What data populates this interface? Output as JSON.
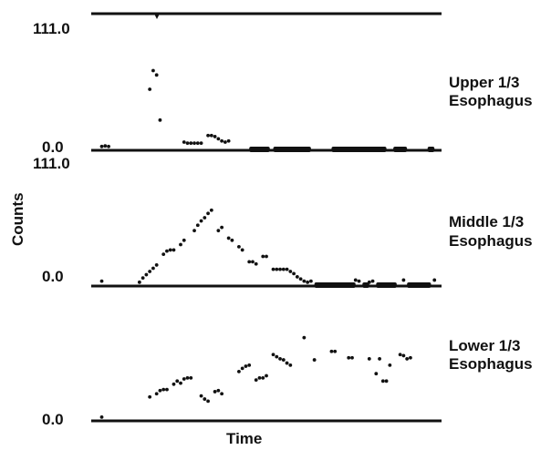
{
  "chart_data": [
    {
      "type": "scatter",
      "title": "Upper 1/3 Esophagus",
      "title_lines": [
        "Upper 1/3",
        "Esophagus"
      ],
      "ylabel": "Counts",
      "xlabel": "Time",
      "ylim": [
        0,
        111.0
      ],
      "yticks": [
        "0.0",
        "111.0"
      ],
      "x_range": [
        0,
        100
      ],
      "series": [
        {
          "points": [
            {
              "x": 2,
              "y": 1
            },
            {
              "x": 3,
              "y": 1.5
            },
            {
              "x": 4,
              "y": 1
            },
            {
              "x": 16,
              "y": 53
            },
            {
              "x": 17,
              "y": 70
            },
            {
              "x": 18,
              "y": 66
            },
            {
              "x": 19,
              "y": 25
            },
            {
              "x": 26,
              "y": 5
            },
            {
              "x": 27,
              "y": 4
            },
            {
              "x": 28,
              "y": 4
            },
            {
              "x": 29,
              "y": 4
            },
            {
              "x": 30,
              "y": 4
            },
            {
              "x": 31,
              "y": 4
            },
            {
              "x": 33,
              "y": 11
            },
            {
              "x": 34,
              "y": 11
            },
            {
              "x": 35,
              "y": 10
            },
            {
              "x": 36,
              "y": 8
            },
            {
              "x": 37,
              "y": 6
            },
            {
              "x": 38,
              "y": 5
            },
            {
              "x": 39,
              "y": 6
            }
          ]
        }
      ],
      "baseline_segments": [
        [
          45,
          51
        ],
        [
          52,
          63
        ],
        [
          69,
          85
        ],
        [
          87,
          91
        ],
        [
          97,
          99
        ]
      ]
    },
    {
      "type": "scatter",
      "title": "Middle 1/3 Esophagus",
      "title_lines": [
        "Middle 1/3",
        "Esophagus"
      ],
      "ylabel": "Counts",
      "xlabel": "Time",
      "ylim": [
        0,
        111.0
      ],
      "yticks": [
        "0.0",
        "111.0"
      ],
      "x_range": [
        0,
        100
      ],
      "series": [
        {
          "points": [
            {
              "x": 2,
              "y": 2
            },
            {
              "x": 13,
              "y": 1
            },
            {
              "x": 14,
              "y": 5
            },
            {
              "x": 15,
              "y": 8
            },
            {
              "x": 16,
              "y": 11
            },
            {
              "x": 17,
              "y": 14
            },
            {
              "x": 18,
              "y": 17
            },
            {
              "x": 20,
              "y": 27
            },
            {
              "x": 21,
              "y": 30
            },
            {
              "x": 22,
              "y": 31
            },
            {
              "x": 23,
              "y": 31
            },
            {
              "x": 25,
              "y": 36
            },
            {
              "x": 26,
              "y": 40
            },
            {
              "x": 29,
              "y": 49
            },
            {
              "x": 30,
              "y": 54
            },
            {
              "x": 31,
              "y": 58
            },
            {
              "x": 32,
              "y": 61
            },
            {
              "x": 33,
              "y": 65
            },
            {
              "x": 34,
              "y": 68
            },
            {
              "x": 36,
              "y": 49
            },
            {
              "x": 37,
              "y": 52
            },
            {
              "x": 39,
              "y": 42
            },
            {
              "x": 40,
              "y": 40
            },
            {
              "x": 42,
              "y": 34
            },
            {
              "x": 43,
              "y": 31
            },
            {
              "x": 45,
              "y": 20
            },
            {
              "x": 46,
              "y": 20
            },
            {
              "x": 47,
              "y": 18
            },
            {
              "x": 49,
              "y": 25
            },
            {
              "x": 50,
              "y": 25
            },
            {
              "x": 52,
              "y": 13
            },
            {
              "x": 53,
              "y": 13
            },
            {
              "x": 54,
              "y": 13
            },
            {
              "x": 55,
              "y": 13
            },
            {
              "x": 56,
              "y": 13
            },
            {
              "x": 57,
              "y": 11
            },
            {
              "x": 58,
              "y": 9
            },
            {
              "x": 59,
              "y": 6
            },
            {
              "x": 60,
              "y": 4
            },
            {
              "x": 61,
              "y": 2
            },
            {
              "x": 62,
              "y": 1
            },
            {
              "x": 63,
              "y": 2
            },
            {
              "x": 76,
              "y": 3
            },
            {
              "x": 77,
              "y": 2
            },
            {
              "x": 80,
              "y": 1
            },
            {
              "x": 81,
              "y": 2
            },
            {
              "x": 90,
              "y": 3
            },
            {
              "x": 99,
              "y": 3
            }
          ]
        }
      ],
      "baseline_segments": [
        [
          64,
          76
        ],
        [
          78,
          80
        ],
        [
          82,
          88
        ],
        [
          91,
          98
        ]
      ]
    },
    {
      "type": "scatter",
      "title": "Lower 1/3 Esophagus",
      "title_lines": [
        "Lower 1/3",
        "Esophagus"
      ],
      "ylabel": "Counts",
      "xlabel": "Time",
      "ylim": [
        0,
        111.0
      ],
      "yticks": [
        "0.0",
        "111.0"
      ],
      "x_range": [
        0,
        100
      ],
      "series": [
        {
          "points": [
            {
              "x": 2,
              "y": 1
            },
            {
              "x": 16,
              "y": 20
            },
            {
              "x": 18,
              "y": 23
            },
            {
              "x": 19,
              "y": 26
            },
            {
              "x": 20,
              "y": 27
            },
            {
              "x": 21,
              "y": 27
            },
            {
              "x": 23,
              "y": 32
            },
            {
              "x": 24,
              "y": 35
            },
            {
              "x": 25,
              "y": 33
            },
            {
              "x": 26,
              "y": 37
            },
            {
              "x": 27,
              "y": 38
            },
            {
              "x": 28,
              "y": 38
            },
            {
              "x": 31,
              "y": 21
            },
            {
              "x": 32,
              "y": 18
            },
            {
              "x": 33,
              "y": 16
            },
            {
              "x": 35,
              "y": 25
            },
            {
              "x": 36,
              "y": 26
            },
            {
              "x": 37,
              "y": 23
            },
            {
              "x": 42,
              "y": 44
            },
            {
              "x": 43,
              "y": 47
            },
            {
              "x": 44,
              "y": 49
            },
            {
              "x": 45,
              "y": 50
            },
            {
              "x": 47,
              "y": 36
            },
            {
              "x": 48,
              "y": 38
            },
            {
              "x": 49,
              "y": 38
            },
            {
              "x": 50,
              "y": 40
            },
            {
              "x": 52,
              "y": 60
            },
            {
              "x": 53,
              "y": 58
            },
            {
              "x": 54,
              "y": 56
            },
            {
              "x": 55,
              "y": 55
            },
            {
              "x": 56,
              "y": 52
            },
            {
              "x": 57,
              "y": 50
            },
            {
              "x": 61,
              "y": 76
            },
            {
              "x": 64,
              "y": 55
            },
            {
              "x": 69,
              "y": 63
            },
            {
              "x": 70,
              "y": 63
            },
            {
              "x": 74,
              "y": 57
            },
            {
              "x": 75,
              "y": 57
            },
            {
              "x": 80,
              "y": 56
            },
            {
              "x": 82,
              "y": 42
            },
            {
              "x": 83,
              "y": 56
            },
            {
              "x": 84,
              "y": 35
            },
            {
              "x": 85,
              "y": 35
            },
            {
              "x": 86,
              "y": 50
            },
            {
              "x": 89,
              "y": 60
            },
            {
              "x": 90,
              "y": 59
            },
            {
              "x": 91,
              "y": 56
            },
            {
              "x": 92,
              "y": 57
            }
          ]
        }
      ],
      "baseline_segments": []
    }
  ]
}
